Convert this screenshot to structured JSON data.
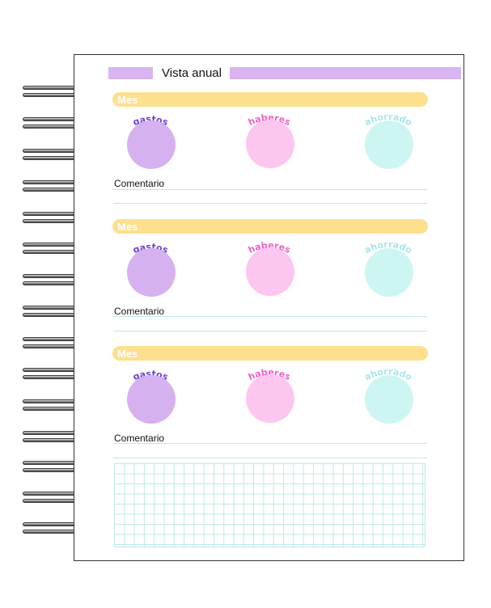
{
  "header": {
    "title": "Vista anual"
  },
  "sections": [
    {
      "month_label": "Mes",
      "gastos": "gastos",
      "haberes": "haberes",
      "ahorrado": "ahorrado",
      "comment": "Comentario"
    },
    {
      "month_label": "Mes",
      "gastos": "gastos",
      "haberes": "haberes",
      "ahorrado": "ahorrado",
      "comment": "Comentario"
    },
    {
      "month_label": "Mes",
      "gastos": "gastos",
      "haberes": "haberes",
      "ahorrado": "ahorrado",
      "comment": "Comentario"
    }
  ],
  "colors": {
    "title_bar": "#d8b4f0",
    "month_bar": "#fce08e",
    "gastos_circle": "#d5b2ef",
    "gastos_text": "#6a3fd8",
    "haberes_circle": "#fcc6ef",
    "haberes_text": "#ef5fc8",
    "ahorrado_circle": "#cdf6f2",
    "ahorrado_text": "#a8e6e8",
    "ruled_line": "#bfe9e6"
  }
}
